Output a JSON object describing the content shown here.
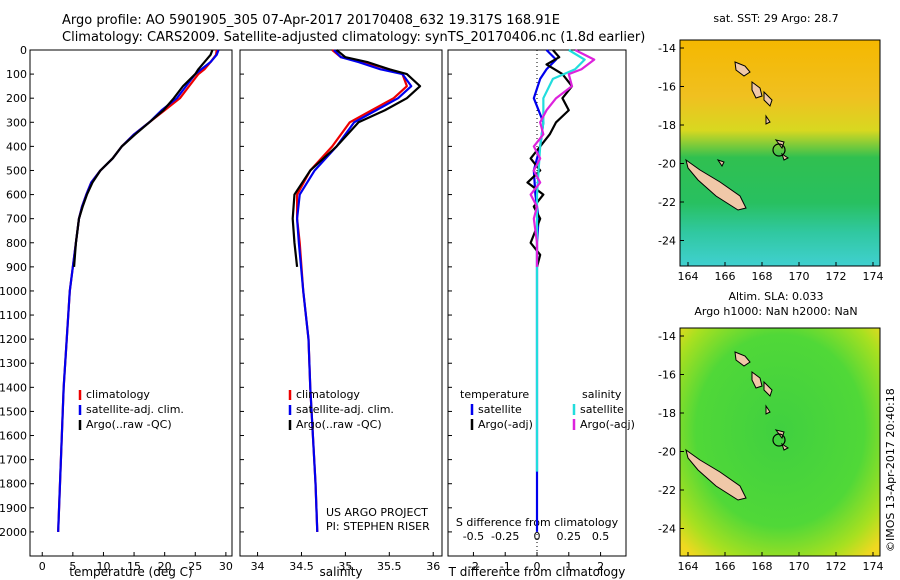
{
  "header": {
    "line1": "Argo profile: AO 5901905_305 07-Apr-2017 20170408_632 19.317S 168.91E",
    "line2": "Climatology: CARS2009. Satellite-adjusted climatology: synTS_20170406.nc (1.8d earlier)"
  },
  "footer": {
    "project": "US ARGO PROJECT",
    "pi": "PI: STEPHEN RISER",
    "stamp": "©IMOS 13-Apr-2017 20:40:18"
  },
  "map_top": {
    "title": "sat. SST: 29 Argo: 28.7"
  },
  "map_bottom": {
    "title1": "Altim. SLA: 0.033",
    "title2": "Argo h1000: NaN h2000: NaN"
  },
  "map_ticks": {
    "lon": [
      "164",
      "166",
      "168",
      "170",
      "172",
      "174"
    ],
    "lat": [
      "-14",
      "-16",
      "-18",
      "-20",
      "-22",
      "-24"
    ]
  },
  "colors": {
    "climatology": "#ee0000",
    "satellite": "#0000ee",
    "argo": "#000000",
    "sal_sat": "#22dddd",
    "sal_argo": "#dd22dd"
  },
  "chart_data": [
    {
      "type": "line",
      "xlabel": "temperature (deg C)",
      "xticks": [
        "0",
        "5",
        "10",
        "15",
        "20",
        "25",
        "30"
      ],
      "xlim": [
        -2,
        31
      ],
      "ylim": [
        2100,
        0
      ],
      "yticks": [
        "0",
        "100",
        "200",
        "300",
        "400",
        "500",
        "600",
        "700",
        "800",
        "900",
        "1000",
        "1100",
        "1200",
        "1300",
        "1400",
        "1500",
        "1600",
        "1700",
        "1800",
        "1900",
        "2000"
      ],
      "legend": [
        "climatology",
        "satellite-adj. clim.",
        "Argo(..raw -QC)"
      ],
      "series": [
        {
          "name": "climatology",
          "points": [
            [
              28.5,
              0
            ],
            [
              28.4,
              20
            ],
            [
              27.5,
              50
            ],
            [
              26.5,
              80
            ],
            [
              25.5,
              100
            ],
            [
              24,
              150
            ],
            [
              22.5,
              200
            ],
            [
              20,
              250
            ],
            [
              17.5,
              300
            ],
            [
              15,
              350
            ],
            [
              13,
              400
            ],
            [
              11.5,
              450
            ],
            [
              9.5,
              500
            ],
            [
              8,
              550
            ],
            [
              7.2,
              600
            ],
            [
              6.5,
              650
            ],
            [
              6,
              700
            ],
            [
              5.5,
              800
            ],
            [
              5,
              900
            ],
            [
              4.5,
              1000
            ],
            [
              4,
              1200
            ],
            [
              3.5,
              1400
            ],
            [
              3.2,
              1600
            ],
            [
              2.9,
              1800
            ],
            [
              2.6,
              2000
            ]
          ]
        },
        {
          "name": "satellite-adj. clim.",
          "points": [
            [
              28.8,
              0
            ],
            [
              28.5,
              20
            ],
            [
              27.5,
              50
            ],
            [
              26,
              80
            ],
            [
              25,
              100
            ],
            [
              23.5,
              150
            ],
            [
              22,
              200
            ],
            [
              19.5,
              250
            ],
            [
              17.5,
              300
            ],
            [
              15,
              350
            ],
            [
              13,
              400
            ],
            [
              11.5,
              450
            ],
            [
              9.5,
              500
            ],
            [
              8,
              550
            ],
            [
              7.2,
              600
            ],
            [
              6.5,
              650
            ],
            [
              6,
              700
            ],
            [
              5.5,
              800
            ],
            [
              5,
              900
            ],
            [
              4.5,
              1000
            ],
            [
              4,
              1200
            ],
            [
              3.5,
              1400
            ],
            [
              3.2,
              1600
            ],
            [
              2.9,
              1800
            ],
            [
              2.6,
              2000
            ]
          ]
        },
        {
          "name": "Argo(..raw -QC)",
          "points": [
            [
              27.8,
              0
            ],
            [
              27.5,
              20
            ],
            [
              26.5,
              50
            ],
            [
              25.5,
              80
            ],
            [
              25,
              100
            ],
            [
              23,
              150
            ],
            [
              21.5,
              200
            ],
            [
              19.8,
              250
            ],
            [
              17.5,
              300
            ],
            [
              15.2,
              350
            ],
            [
              13,
              400
            ],
            [
              11.5,
              450
            ],
            [
              9.5,
              500
            ],
            [
              8.2,
              550
            ],
            [
              7.3,
              600
            ],
            [
              6.6,
              650
            ],
            [
              6,
              700
            ],
            [
              5.5,
              800
            ],
            [
              5.2,
              900
            ]
          ]
        }
      ]
    },
    {
      "type": "line",
      "xlabel": "salinity",
      "xticks": [
        "34",
        "34.5",
        "35",
        "35.5",
        "36"
      ],
      "xlim": [
        33.8,
        36.1
      ],
      "ylim": [
        2100,
        0
      ],
      "legend": [
        "climatology",
        "satellite-adj. clim.",
        "Argo(..raw -QC)"
      ],
      "series": [
        {
          "name": "climatology",
          "points": [
            [
              34.85,
              0
            ],
            [
              34.95,
              30
            ],
            [
              35.2,
              50
            ],
            [
              35.5,
              80
            ],
            [
              35.65,
              100
            ],
            [
              35.7,
              150
            ],
            [
              35.55,
              200
            ],
            [
              35.3,
              250
            ],
            [
              35.05,
              300
            ],
            [
              34.85,
              400
            ],
            [
              34.6,
              500
            ],
            [
              34.45,
              600
            ],
            [
              34.45,
              700
            ],
            [
              34.48,
              800
            ],
            [
              34.52,
              1000
            ],
            [
              34.58,
              1200
            ],
            [
              34.6,
              1400
            ],
            [
              34.63,
              1600
            ],
            [
              34.66,
              1800
            ],
            [
              34.68,
              2000
            ]
          ]
        },
        {
          "name": "satellite-adj. clim.",
          "points": [
            [
              34.87,
              0
            ],
            [
              34.95,
              30
            ],
            [
              35.15,
              50
            ],
            [
              35.4,
              80
            ],
            [
              35.65,
              100
            ],
            [
              35.75,
              150
            ],
            [
              35.6,
              200
            ],
            [
              35.35,
              250
            ],
            [
              35.1,
              300
            ],
            [
              34.9,
              400
            ],
            [
              34.65,
              500
            ],
            [
              34.48,
              600
            ],
            [
              34.45,
              700
            ],
            [
              34.47,
              800
            ],
            [
              34.52,
              1000
            ],
            [
              34.58,
              1200
            ],
            [
              34.6,
              1400
            ],
            [
              34.63,
              1600
            ],
            [
              34.66,
              1800
            ],
            [
              34.68,
              2000
            ]
          ]
        },
        {
          "name": "Argo(..raw -QC)",
          "points": [
            [
              34.9,
              0
            ],
            [
              35.0,
              30
            ],
            [
              35.25,
              50
            ],
            [
              35.5,
              80
            ],
            [
              35.7,
              100
            ],
            [
              35.85,
              150
            ],
            [
              35.7,
              200
            ],
            [
              35.45,
              250
            ],
            [
              35.15,
              300
            ],
            [
              34.9,
              400
            ],
            [
              34.6,
              500
            ],
            [
              34.42,
              600
            ],
            [
              34.4,
              700
            ],
            [
              34.42,
              800
            ],
            [
              34.45,
              900
            ]
          ]
        }
      ]
    },
    {
      "type": "line",
      "xlabel": "T difference from climatology",
      "xlabel2": "S difference from climatology",
      "xticks": [
        "-2",
        "-1",
        "0",
        "1",
        "2"
      ],
      "xticks2": [
        "-0.5",
        "-0.25",
        "0",
        "0.25",
        "0.5"
      ],
      "xlim": [
        -2.8,
        2.8
      ],
      "ylim": [
        2100,
        0
      ],
      "legend_t_title": "temperature",
      "legend_s_title": "salinity",
      "legend": [
        "satellite",
        "Argo(-adj)",
        "satellite",
        "Argo(-adj)"
      ],
      "series": [
        {
          "name": "satellite",
          "points": [
            [
              0.3,
              0
            ],
            [
              0.6,
              40
            ],
            [
              0.3,
              80
            ],
            [
              0.1,
              120
            ],
            [
              -0.1,
              200
            ],
            [
              0.2,
              300
            ],
            [
              0.1,
              400
            ],
            [
              -0.1,
              500
            ],
            [
              -0.05,
              600
            ],
            [
              0.05,
              700
            ],
            [
              0,
              800
            ],
            [
              0,
              1000
            ],
            [
              0,
              1500
            ],
            [
              0,
              2000
            ]
          ]
        },
        {
          "name": "Argo(-adj)",
          "points": [
            [
              0.5,
              0
            ],
            [
              0.7,
              30
            ],
            [
              0.3,
              60
            ],
            [
              0.8,
              100
            ],
            [
              1.1,
              150
            ],
            [
              0.8,
              200
            ],
            [
              1.0,
              250
            ],
            [
              0.6,
              300
            ],
            [
              0.4,
              350
            ],
            [
              0.1,
              400
            ],
            [
              -0.2,
              450
            ],
            [
              0.1,
              500
            ],
            [
              -0.3,
              550
            ],
            [
              0.2,
              600
            ],
            [
              -0.1,
              650
            ],
            [
              0.1,
              700
            ],
            [
              -0.2,
              800
            ],
            [
              0.1,
              850
            ],
            [
              0,
              900
            ]
          ]
        },
        {
          "name": "satellite",
          "points": [
            [
              1.0,
              0
            ],
            [
              1.5,
              40
            ],
            [
              1.2,
              80
            ],
            [
              0.5,
              120
            ],
            [
              0.2,
              200
            ],
            [
              0.2,
              300
            ],
            [
              0.1,
              400
            ],
            [
              0.05,
              500
            ],
            [
              0,
              600
            ],
            [
              0,
              700
            ],
            [
              0,
              800
            ],
            [
              0,
              1000
            ],
            [
              0,
              1500
            ],
            [
              0,
              1750
            ]
          ]
        },
        {
          "name": "Argo(-adj)",
          "points": [
            [
              1.2,
              0
            ],
            [
              1.8,
              40
            ],
            [
              1.4,
              80
            ],
            [
              1.0,
              100
            ],
            [
              1.1,
              150
            ],
            [
              0.6,
              200
            ],
            [
              0.3,
              250
            ],
            [
              0.1,
              300
            ],
            [
              0.2,
              350
            ],
            [
              -0.1,
              400
            ],
            [
              0.1,
              450
            ],
            [
              -0.1,
              500
            ],
            [
              0.1,
              550
            ],
            [
              -0.2,
              600
            ],
            [
              0,
              650
            ],
            [
              -0.1,
              700
            ],
            [
              0,
              800
            ],
            [
              0,
              900
            ]
          ]
        }
      ]
    }
  ]
}
